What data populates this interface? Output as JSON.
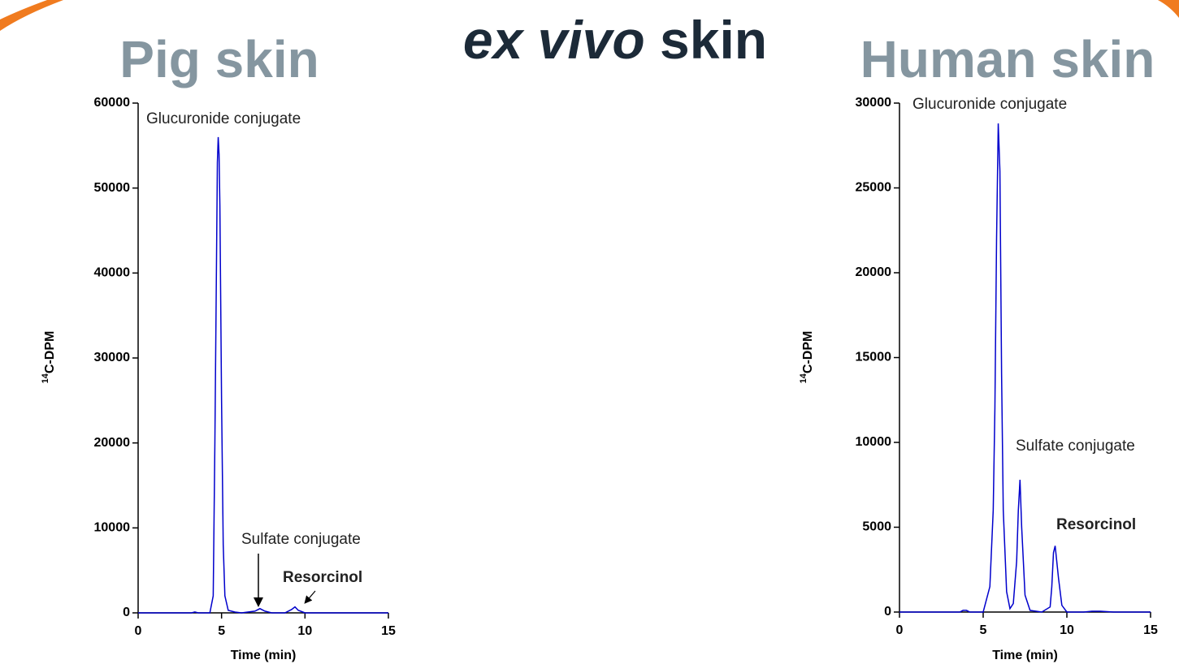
{
  "slide": {
    "title_parts": [
      "ex vivo",
      "skin"
    ]
  },
  "chart_data": [
    {
      "type": "line",
      "title": "Pig skin",
      "ylabel_parts": [
        "14",
        "C-DPM"
      ],
      "xlabel": "Time (min)",
      "xlim": [
        0,
        15
      ],
      "xticks": [
        0,
        5,
        10,
        15
      ],
      "ylim": [
        0,
        60000
      ],
      "yticks": [
        0,
        10000,
        20000,
        30000,
        40000,
        50000,
        60000
      ],
      "x": [
        0,
        3.2,
        3.4,
        3.6,
        4.3,
        4.5,
        4.6,
        4.7,
        4.75,
        4.8,
        4.85,
        4.9,
        5.0,
        5.1,
        5.2,
        5.4,
        5.8,
        6.2,
        7.0,
        7.3,
        7.6,
        8.0,
        8.8,
        9.2,
        9.4,
        9.6,
        10.0,
        15
      ],
      "series": [
        {
          "color": "#0000cc",
          "values": [
            0,
            0,
            100,
            0,
            0,
            2000,
            20000,
            42000,
            53000,
            56000,
            54000,
            48000,
            25000,
            8000,
            2000,
            300,
            100,
            0,
            200,
            500,
            200,
            0,
            0,
            400,
            700,
            300,
            0,
            0
          ]
        }
      ],
      "annotations": [
        {
          "text": "Glucuronide conjugate",
          "color": "#222222"
        },
        {
          "text": "Sulfate conjugate",
          "color": "#222222"
        },
        {
          "text": "Resorcinol",
          "color": "#ff0000"
        }
      ]
    },
    {
      "type": "line",
      "title": "Human skin",
      "ylabel_parts": [
        "14",
        "C-DPM"
      ],
      "xlabel": "Time (min)",
      "xlim": [
        0,
        15
      ],
      "xticks": [
        0,
        5,
        10,
        15
      ],
      "ylim": [
        0,
        30000
      ],
      "yticks": [
        0,
        5000,
        10000,
        15000,
        20000,
        25000,
        30000
      ],
      "x": [
        0,
        3.6,
        3.8,
        4.0,
        4.2,
        5.0,
        5.4,
        5.6,
        5.7,
        5.8,
        5.9,
        6.0,
        6.1,
        6.2,
        6.4,
        6.6,
        6.8,
        7.0,
        7.1,
        7.2,
        7.3,
        7.5,
        7.8,
        8.5,
        9.0,
        9.1,
        9.2,
        9.3,
        9.5,
        9.7,
        10.0,
        11.0,
        11.5,
        12.0,
        12.8,
        15
      ],
      "series": [
        {
          "color": "#0000cc",
          "values": [
            0,
            0,
            100,
            100,
            0,
            0,
            1500,
            6000,
            12000,
            22000,
            28800,
            26000,
            14000,
            6000,
            1200,
            200,
            500,
            3000,
            6000,
            7800,
            5000,
            1000,
            100,
            0,
            300,
            1500,
            3500,
            3900,
            2000,
            400,
            0,
            0,
            50,
            50,
            0,
            0
          ]
        }
      ],
      "annotations": [
        {
          "text": "Glucuronide conjugate",
          "color": "#222222"
        },
        {
          "text": "Sulfate conjugate",
          "color": "#222222"
        },
        {
          "text": "Resorcinol",
          "color": "#ff0000"
        }
      ]
    }
  ]
}
